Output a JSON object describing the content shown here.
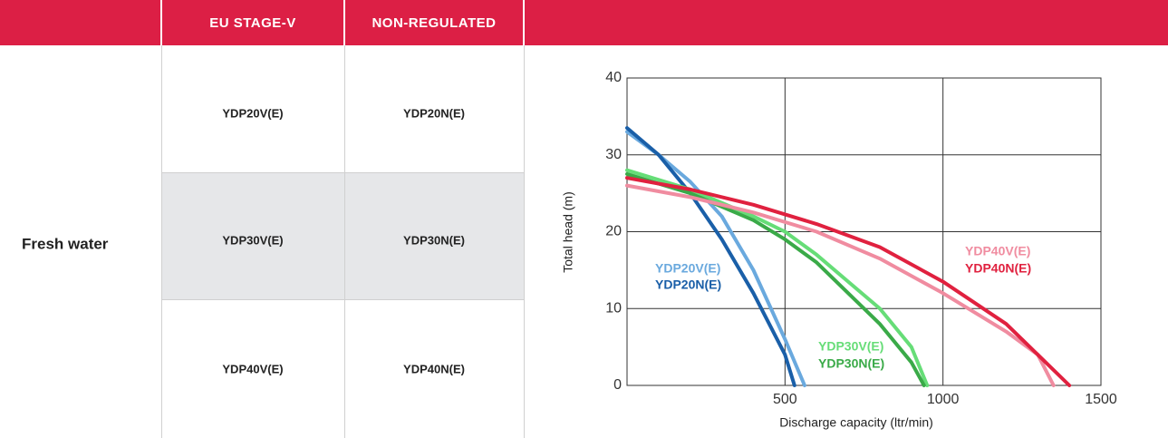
{
  "table": {
    "headers": [
      "EU STAGE-V",
      "NON-REGULATED"
    ],
    "category": "Fresh water",
    "rows": [
      [
        "YDP20V(E)",
        "YDP20N(E)"
      ],
      [
        "YDP30V(E)",
        "YDP30N(E)"
      ],
      [
        "YDP40V(E)",
        "YDP40N(E)"
      ]
    ]
  },
  "chart_data": {
    "type": "line",
    "xlabel": "Discharge capacity (ltr/min)",
    "ylabel": "Total head (m)",
    "xlim": [
      0,
      1500
    ],
    "ylim": [
      0,
      40
    ],
    "xticks": [
      500,
      1000,
      1500
    ],
    "yticks": [
      0,
      10,
      20,
      30,
      40
    ],
    "grid": true,
    "series": [
      {
        "name": "YDP20V(E)",
        "color": "#6aa9de",
        "x": [
          0,
          100,
          200,
          300,
          400,
          450,
          500,
          562
        ],
        "values": [
          33,
          30,
          26.5,
          22,
          15,
          10.5,
          6,
          0
        ]
      },
      {
        "name": "YDP20N(E)",
        "color": "#1a5fa8",
        "x": [
          0,
          100,
          200,
          300,
          400,
          450,
          500,
          530
        ],
        "values": [
          33.5,
          30,
          25,
          19,
          12,
          8,
          4,
          0
        ]
      },
      {
        "name": "YDP30V(E)",
        "color": "#66dd77",
        "x": [
          0,
          200,
          400,
          500,
          600,
          700,
          800,
          900,
          950
        ],
        "values": [
          28,
          25.5,
          22,
          20,
          17,
          13.5,
          10,
          5,
          0
        ]
      },
      {
        "name": "YDP30N(E)",
        "color": "#3aaa48",
        "x": [
          0,
          200,
          400,
          500,
          600,
          700,
          800,
          900,
          940
        ],
        "values": [
          27.5,
          25,
          21.5,
          19,
          16,
          12,
          8,
          3,
          0
        ]
      },
      {
        "name": "YDP40V(E)",
        "color": "#f08ca0",
        "x": [
          0,
          200,
          400,
          600,
          800,
          1000,
          1200,
          1300,
          1350
        ],
        "values": [
          26,
          24.5,
          22.5,
          20,
          16.5,
          12,
          7,
          4,
          0
        ]
      },
      {
        "name": "YDP40N(E)",
        "color": "#e0213f",
        "x": [
          0,
          200,
          400,
          600,
          800,
          1000,
          1200,
          1300,
          1400
        ],
        "values": [
          27,
          25.5,
          23.5,
          21,
          18,
          13.5,
          8,
          4,
          0
        ]
      }
    ]
  }
}
